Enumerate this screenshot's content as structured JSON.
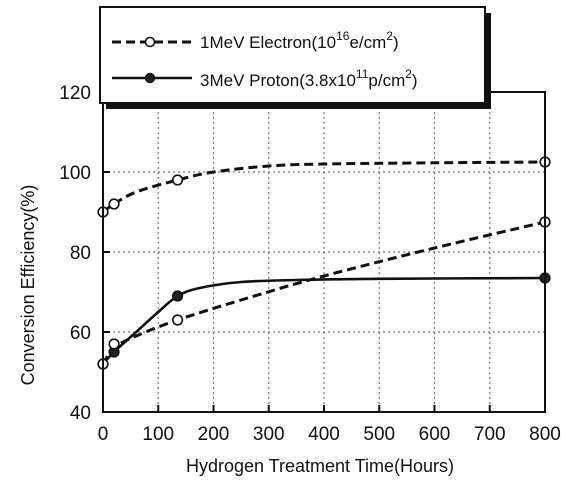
{
  "chart_data": {
    "type": "line",
    "title": "",
    "xlabel": "Hydrogen Treatment Time(Hours)",
    "ylabel": "Conversion Efficiency(%)",
    "xlim": [
      0,
      800
    ],
    "ylim": [
      40,
      120
    ],
    "xticks": [
      0,
      100,
      200,
      300,
      400,
      500,
      600,
      700,
      800
    ],
    "yticks": [
      40,
      60,
      80,
      100,
      120
    ],
    "grid": true,
    "legend_position": "top-left",
    "series": [
      {
        "legend_parts": [
          "1MeV Electron(10",
          "16",
          "e/cm",
          "2",
          ")"
        ],
        "style": "dashed",
        "marker": "open-circle",
        "color": "#111111",
        "points": [
          [
            0,
            90
          ],
          [
            20,
            92
          ],
          [
            135,
            98
          ],
          [
            800,
            102.5
          ]
        ],
        "fit_curve": [
          [
            0,
            90
          ],
          [
            20,
            92
          ],
          [
            60,
            95
          ],
          [
            135,
            98
          ],
          [
            200,
            100
          ],
          [
            300,
            101.5
          ],
          [
            400,
            102
          ],
          [
            600,
            102.3
          ],
          [
            800,
            102.5
          ]
        ]
      },
      {
        "legend_parts": [
          "3MeV Proton(3.8x10",
          "11",
          "p/cm",
          "2",
          ")"
        ],
        "style": "solid",
        "marker": "filled-circle",
        "color": "#111111",
        "points": [
          [
            0,
            52
          ],
          [
            20,
            55
          ],
          [
            135,
            69
          ],
          [
            800,
            73.5
          ]
        ],
        "fit_curve": [
          [
            0,
            52
          ],
          [
            20,
            55
          ],
          [
            60,
            60
          ],
          [
            100,
            65
          ],
          [
            135,
            69
          ],
          [
            175,
            71
          ],
          [
            250,
            72.5
          ],
          [
            350,
            73
          ],
          [
            500,
            73.3
          ],
          [
            800,
            73.5
          ]
        ]
      },
      {
        "style": "dashed",
        "marker": "open-circle",
        "color": "#111111",
        "points": [
          [
            0,
            52
          ],
          [
            20,
            57
          ],
          [
            135,
            63
          ],
          [
            800,
            87.5
          ]
        ],
        "fit_curve": [
          [
            0,
            52
          ],
          [
            20,
            56
          ],
          [
            60,
            59
          ],
          [
            135,
            63
          ],
          [
            250,
            68
          ],
          [
            400,
            74
          ],
          [
            600,
            81
          ],
          [
            800,
            87.5
          ]
        ]
      }
    ]
  }
}
